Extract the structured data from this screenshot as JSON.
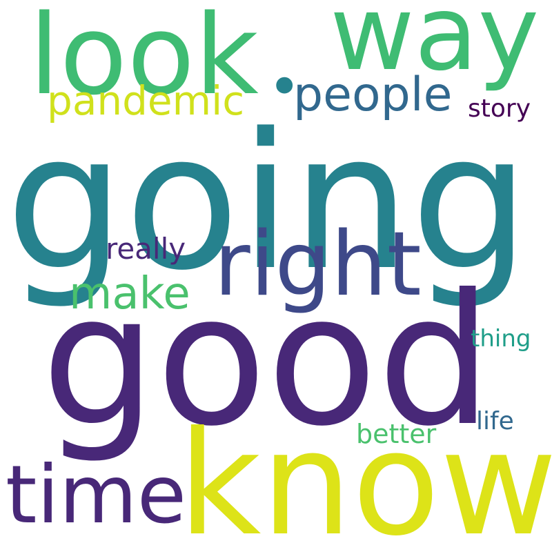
{
  "words": [
    {
      "text": "going",
      "color": "#26828e"
    },
    {
      "text": "good",
      "color": "#482878"
    },
    {
      "text": "know",
      "color": "#dde318"
    },
    {
      "text": "look",
      "color": "#3fbc73"
    },
    {
      "text": "way",
      "color": "#3fbc73"
    },
    {
      "text": "right",
      "color": "#3e4989"
    },
    {
      "text": "time",
      "color": "#482878"
    },
    {
      "text": "people",
      "color": "#31688e"
    },
    {
      "text": "pandemic",
      "color": "#d0e11c"
    },
    {
      "text": "make",
      "color": "#4ac16d"
    },
    {
      "text": "really",
      "color": "#482878"
    },
    {
      "text": "better",
      "color": "#4ac16d"
    },
    {
      "text": "story",
      "color": "#440154"
    },
    {
      "text": "thing",
      "color": "#1f9e89"
    },
    {
      "text": "life",
      "color": "#31688e"
    },
    {
      "text": "•",
      "color": "#26828e"
    }
  ]
}
